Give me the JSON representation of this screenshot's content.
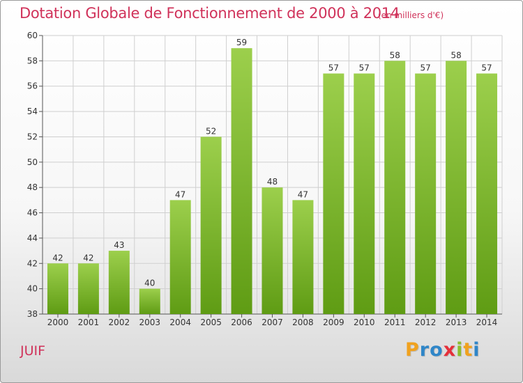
{
  "header": {
    "title": "Dotation Globale de Fonctionnement de 2000 à 2014",
    "unit": "(en milliers d'€)"
  },
  "commune": "JUIF",
  "logo": {
    "letters": [
      "P",
      "r",
      "o",
      "x",
      "i",
      "t",
      "i"
    ],
    "colors": [
      "#f0a21f",
      "#2f86c8",
      "#2f86c8",
      "#e5303a",
      "#8bbf2c",
      "#f0a21f",
      "#2f86c8"
    ]
  },
  "chart_data": {
    "type": "bar",
    "title": "Dotation Globale de Fonctionnement de 2000 à 2014",
    "subtitle": "(en milliers d'€)",
    "categories": [
      "2000",
      "2001",
      "2002",
      "2003",
      "2004",
      "2005",
      "2006",
      "2007",
      "2008",
      "2009",
      "2010",
      "2011",
      "2012",
      "2013",
      "2014"
    ],
    "values": [
      42,
      42,
      43,
      40,
      47,
      52,
      59,
      48,
      47,
      57,
      57,
      58,
      57,
      58,
      57
    ],
    "ylim": [
      38,
      60
    ],
    "yticks": [
      38,
      40,
      42,
      44,
      46,
      48,
      50,
      52,
      54,
      56,
      58,
      60
    ],
    "grid": true,
    "bar_color": "#7fbf2e"
  }
}
